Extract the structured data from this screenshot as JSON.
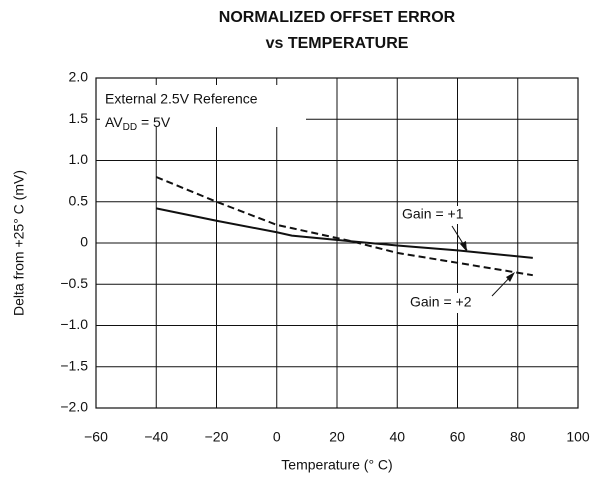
{
  "chart_data": {
    "type": "line",
    "title": [
      "NORMALIZED OFFSET ERROR",
      "vs TEMPERATURE"
    ],
    "x_label": "Temperature (° C)",
    "y_label": "Delta from +25° C (mV)",
    "notes": [
      "External 2.5V Reference",
      [
        "AV",
        "DD",
        " = 5V"
      ]
    ],
    "x": [
      -40,
      -20,
      0,
      5,
      25,
      40,
      60,
      85
    ],
    "series": [
      {
        "name": "Gain = +1",
        "color": "#111111",
        "line_style": "solid",
        "values": [
          0.42,
          0.27,
          0.13,
          0.09,
          0.02,
          -0.03,
          -0.09,
          -0.18
        ]
      },
      {
        "name": "Gain = +2",
        "color": "#111111",
        "line_style": "dashed",
        "values": [
          0.8,
          0.5,
          0.22,
          0.18,
          0.02,
          -0.12,
          -0.24,
          -0.39
        ]
      }
    ],
    "xlim": [
      -60,
      100
    ],
    "xticks": [
      {
        "value": -60,
        "label": "−60"
      },
      {
        "value": -40,
        "label": "−40"
      },
      {
        "value": -20,
        "label": "−20"
      },
      0,
      20,
      40,
      60,
      80,
      100
    ],
    "ylim": [
      -2,
      2
    ],
    "yticks": [
      {
        "value": -2,
        "label": "−2.0"
      },
      {
        "value": -1.5,
        "label": "−1.5"
      },
      {
        "value": -1,
        "label": "−1.0"
      },
      {
        "value": -0.5,
        "label": "−0.5"
      },
      0,
      {
        "value": 0.5,
        "label": "0.5"
      },
      {
        "value": 1,
        "label": "1.0"
      },
      {
        "value": 1.5,
        "label": "1.5"
      },
      {
        "value": 2,
        "label": "2.0"
      }
    ],
    "grid": true
  }
}
